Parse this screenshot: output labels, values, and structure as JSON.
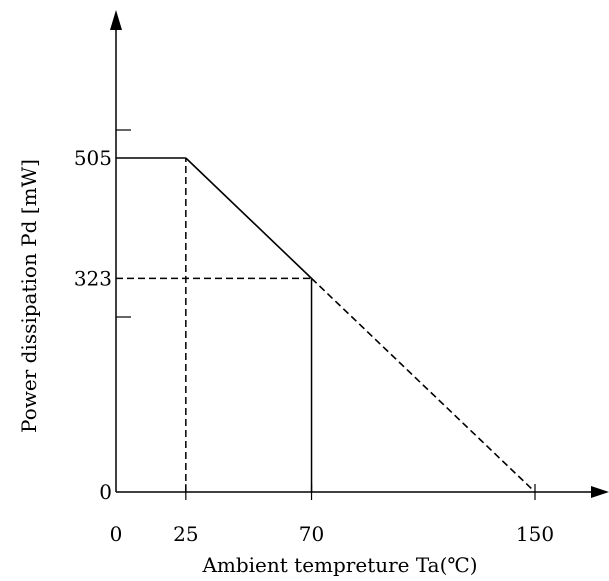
{
  "chart_data": {
    "type": "line",
    "xlabel": "Ambient tempreture Ta(℃)",
    "ylabel": "Power dissipation  Pd  [mW]",
    "xlim": [
      0,
      150
    ],
    "ylim": [
      0,
      505
    ],
    "grid": false,
    "x_ticks": [
      {
        "value": 0,
        "label": "0"
      },
      {
        "value": 25,
        "label": "25"
      },
      {
        "value": 70,
        "label": "70"
      },
      {
        "value": 150,
        "label": "150"
      }
    ],
    "y_ticks": [
      {
        "value": 0,
        "label": "0"
      },
      {
        "value": 323,
        "label": "323"
      },
      {
        "value": 505,
        "label": "505"
      }
    ],
    "series": [
      {
        "style": "solid",
        "points": [
          [
            0,
            505
          ],
          [
            25,
            505
          ],
          [
            70,
            323
          ]
        ]
      },
      {
        "style": "dashed",
        "points": [
          [
            70,
            323
          ],
          [
            150,
            0
          ]
        ]
      }
    ],
    "reference_lines": [
      {
        "style": "dashed",
        "points": [
          [
            25,
            0
          ],
          [
            25,
            505
          ]
        ]
      },
      {
        "style": "dashed",
        "points": [
          [
            0,
            323
          ],
          [
            70,
            323
          ]
        ]
      },
      {
        "style": "solid",
        "points": [
          [
            70,
            0
          ],
          [
            70,
            323
          ]
        ]
      }
    ]
  }
}
